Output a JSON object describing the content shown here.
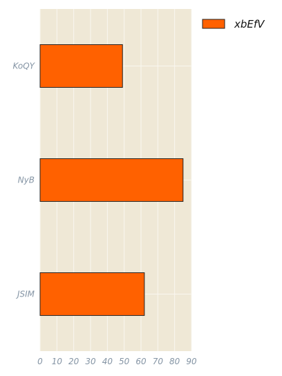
{
  "chart_data": {
    "type": "bar",
    "orientation": "horizontal",
    "categories": [
      "KoQY",
      "NyB",
      "JSIM"
    ],
    "series": [
      {
        "name": "xbEfV",
        "values": [
          49,
          85,
          62
        ]
      }
    ],
    "xlim": [
      0,
      90
    ],
    "xticks": [
      "0",
      "10",
      "20",
      "30",
      "40",
      "50",
      "60",
      "70",
      "80",
      "90"
    ],
    "grid": true,
    "legend_position": "top-right",
    "colors": {
      "bar": "#ff6100",
      "bar_edge": "#222222",
      "plot_background": "#efe8d6",
      "grid": "#faf7f0",
      "tick_text": "#8494a4"
    }
  }
}
